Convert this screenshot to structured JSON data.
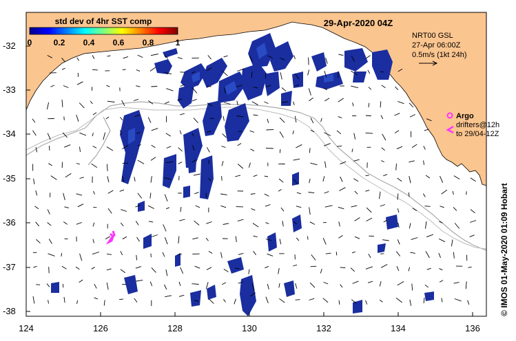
{
  "map": {
    "date_title": "29-Apr-2020 04Z",
    "colorbar": {
      "title": "std dev of 4hr SST comp",
      "ticks": [
        "0",
        "0.2",
        "0.4",
        "0.6",
        "0.8",
        "1"
      ],
      "min": 0,
      "max": 1
    },
    "current_legend": {
      "line1": "NRT00 GSL",
      "line2": "27-Apr 06:00Z",
      "line3": "0.5m/s (1kt 24h)"
    },
    "argo_legend": {
      "label": "Argo",
      "drifters_line1": "drifters@12h",
      "drifters_line2": "to 29/04-12Z"
    },
    "credit": "© IMOS 01-May-2020 01:09 Hobart",
    "lon_ticks": [
      "124",
      "126",
      "128",
      "130",
      "132",
      "134",
      "136"
    ],
    "lat_ticks": [
      "-32",
      "-33",
      "-34",
      "-35",
      "-36",
      "-37",
      "-38"
    ],
    "colors": {
      "land": "#fbc58f",
      "ocean": "#ffffff",
      "sst_patch": "#1a2ea0",
      "sst_patch_light": "#2f55d0",
      "argo": "#ff33ff",
      "bathymetry": "#aaaaaa",
      "arrow": "#000000"
    }
  }
}
